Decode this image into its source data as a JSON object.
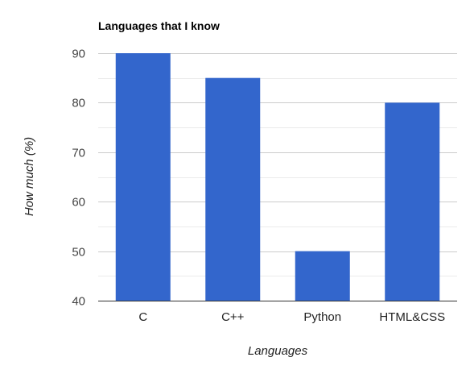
{
  "chart_data": {
    "type": "bar",
    "title": "Languages that I know",
    "xlabel": "Languages",
    "ylabel": "How much (%)",
    "categories": [
      "C",
      "C++",
      "Python",
      "HTML&CSS"
    ],
    "values": [
      90,
      85,
      50,
      80
    ],
    "ylim": [
      40,
      90
    ],
    "yticks": [
      40,
      50,
      60,
      70,
      80,
      90
    ],
    "grid": true,
    "legend": "none",
    "colors": {
      "bar": "#3366cc",
      "major_grid": "#cccccc",
      "minor_grid": "#ebebeb",
      "axis_text": "#444444",
      "title": "#000000"
    }
  }
}
